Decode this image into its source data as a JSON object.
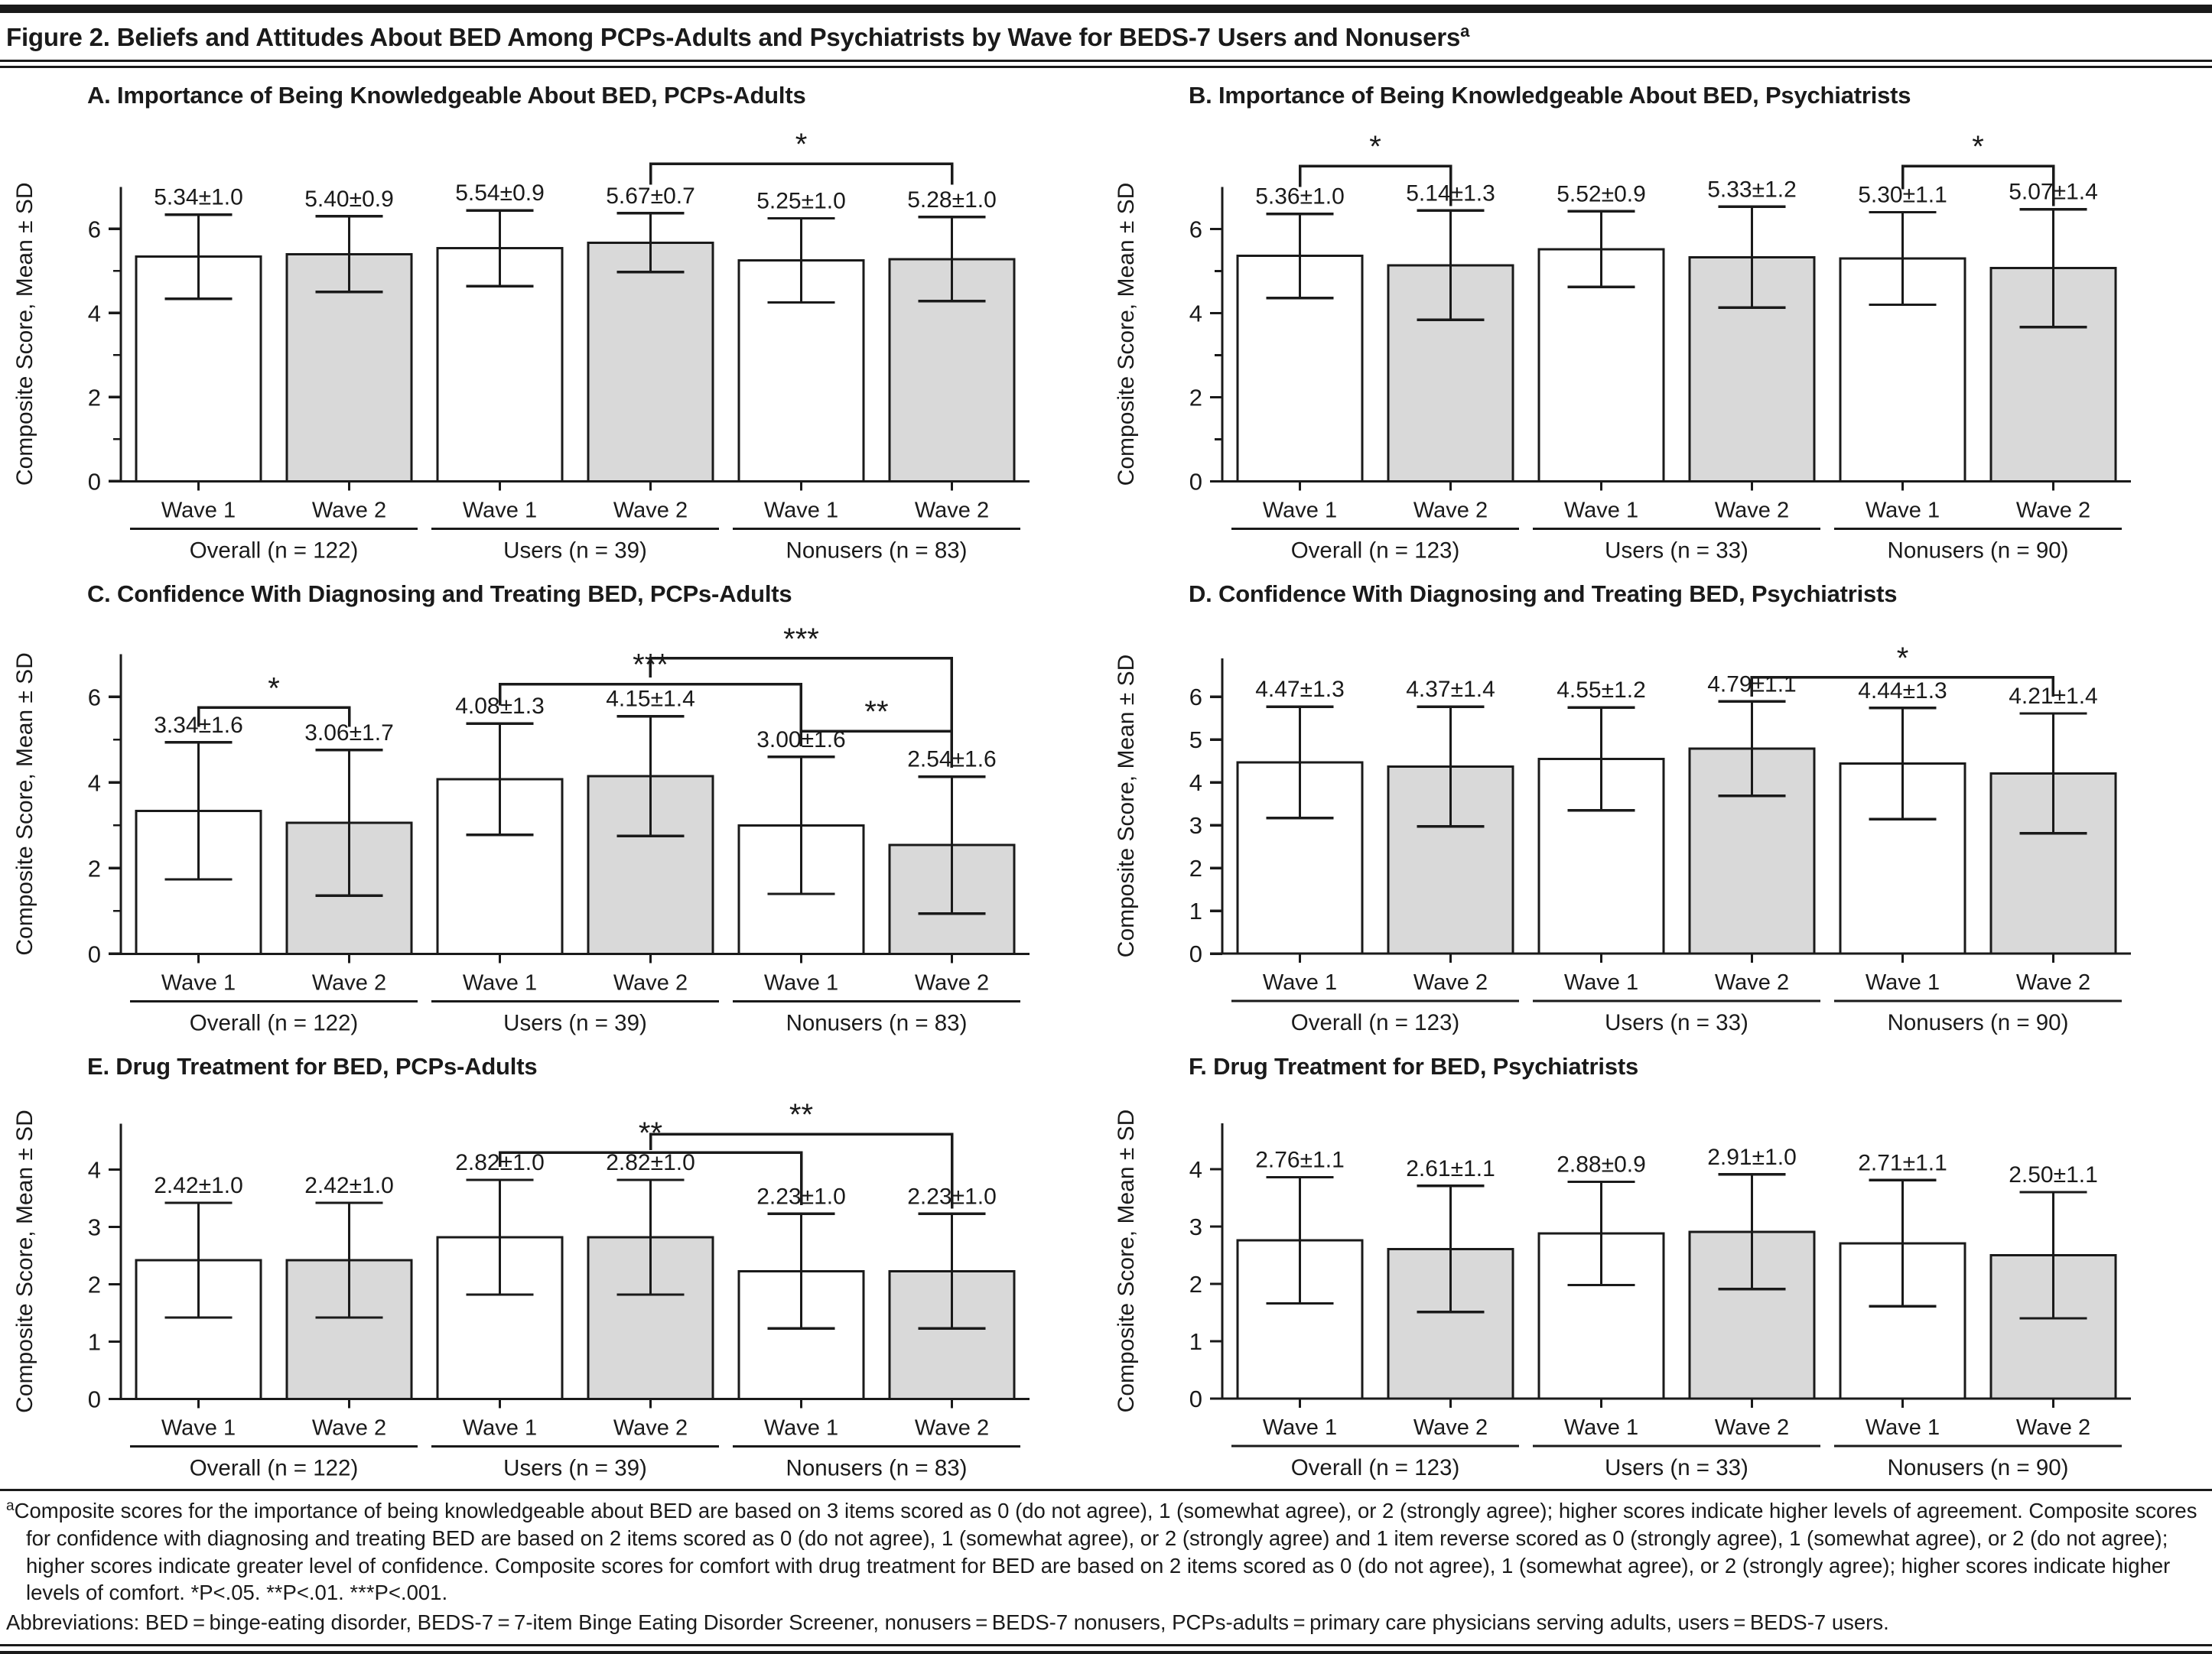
{
  "figure": {
    "title": "Figure 2. Beliefs and Attitudes About BED Among PCPs-Adults and Psychiatrists by Wave for BEDS-7 Users and Nonusers",
    "title_superscript": "a"
  },
  "colors": {
    "ink": "#1a1a1a",
    "bar_wave1_fill": "#ffffff",
    "bar_wave2_fill": "#d9d9d9"
  },
  "chart_data": [
    {
      "panel": "A",
      "type": "bar",
      "title": "A. Importance of Being Knowledgeable About BED, PCPs-Adults",
      "ylabel": "Composite Score, Mean ± SD",
      "ylim": [
        0,
        7
      ],
      "yticks": [
        0,
        2,
        4,
        6
      ],
      "yminor": [
        1,
        3,
        5
      ],
      "grid": false,
      "groups": [
        {
          "label": "Overall (n = 122)",
          "bars": [
            {
              "wave": "Wave 1",
              "mean": 5.34,
              "sd": 1.0,
              "label": "5.34±1.0"
            },
            {
              "wave": "Wave 2",
              "mean": 5.4,
              "sd": 0.9,
              "label": "5.40±0.9"
            }
          ]
        },
        {
          "label": "Users (n = 39)",
          "bars": [
            {
              "wave": "Wave 1",
              "mean": 5.54,
              "sd": 0.9,
              "label": "5.54±0.9"
            },
            {
              "wave": "Wave 2",
              "mean": 5.67,
              "sd": 0.7,
              "label": "5.67±0.7"
            }
          ]
        },
        {
          "label": "Nonusers (n = 83)",
          "bars": [
            {
              "wave": "Wave 1",
              "mean": 5.25,
              "sd": 1.0,
              "label": "5.25±1.0"
            },
            {
              "wave": "Wave 2",
              "mean": 5.28,
              "sd": 1.0,
              "label": "5.28±1.0"
            }
          ]
        }
      ],
      "brackets": [
        {
          "from": 3,
          "to": 5,
          "label": "*",
          "y": 7.55,
          "drop_from": 0.5,
          "drop_to": 0.5
        }
      ]
    },
    {
      "panel": "B",
      "type": "bar",
      "title": "B. Importance of Being Knowledgeable About BED, Psychiatrists",
      "ylabel": "Composite Score, Mean ± SD",
      "ylim": [
        0,
        7
      ],
      "yticks": [
        0,
        2,
        4,
        6
      ],
      "yminor": [
        1,
        3,
        5
      ],
      "grid": false,
      "groups": [
        {
          "label": "Overall (n = 123)",
          "bars": [
            {
              "wave": "Wave 1",
              "mean": 5.36,
              "sd": 1.0,
              "label": "5.36±1.0"
            },
            {
              "wave": "Wave 2",
              "mean": 5.14,
              "sd": 1.3,
              "label": "5.14±1.3"
            }
          ]
        },
        {
          "label": "Users  (n = 33)",
          "bars": [
            {
              "wave": "Wave 1",
              "mean": 5.52,
              "sd": 0.9,
              "label": "5.52±0.9"
            },
            {
              "wave": "Wave 2",
              "mean": 5.33,
              "sd": 1.2,
              "label": "5.33±1.2"
            }
          ]
        },
        {
          "label": "Nonusers  (n = 90)",
          "bars": [
            {
              "wave": "Wave 1",
              "mean": 5.3,
              "sd": 1.1,
              "label": "5.30±1.1"
            },
            {
              "wave": "Wave 2",
              "mean": 5.07,
              "sd": 1.4,
              "label": "5.07±1.4"
            }
          ]
        }
      ],
      "brackets": [
        {
          "from": 0,
          "to": 1,
          "label": "*",
          "y": 7.5,
          "drop_from": 0.5,
          "drop_to": 0.95
        },
        {
          "from": 4,
          "to": 5,
          "label": "*",
          "y": 7.5,
          "drop_from": 0.55,
          "drop_to": 0.95
        }
      ]
    },
    {
      "panel": "C",
      "type": "bar",
      "title": "C. Confidence With Diagnosing and Treating BED, PCPs-Adults",
      "ylabel": "Composite Score, Mean ± SD",
      "ylim": [
        0,
        7
      ],
      "yticks": [
        0,
        2,
        4,
        6
      ],
      "yminor": [
        1,
        3,
        5
      ],
      "grid": false,
      "groups": [
        {
          "label": "Overall (n = 122)",
          "bars": [
            {
              "wave": "Wave 1",
              "mean": 3.34,
              "sd": 1.6,
              "label": "3.34±1.6"
            },
            {
              "wave": "Wave 2",
              "mean": 3.06,
              "sd": 1.7,
              "label": "3.06±1.7"
            }
          ]
        },
        {
          "label": "Users (n = 39)",
          "bars": [
            {
              "wave": "Wave 1",
              "mean": 4.08,
              "sd": 1.3,
              "label": "4.08±1.3"
            },
            {
              "wave": "Wave 2",
              "mean": 4.15,
              "sd": 1.4,
              "label": "4.15±1.4"
            }
          ]
        },
        {
          "label": "Nonusers (n = 83)",
          "bars": [
            {
              "wave": "Wave 1",
              "mean": 3.0,
              "sd": 1.6,
              "label": "3.00±1.6"
            },
            {
              "wave": "Wave 2",
              "mean": 2.54,
              "sd": 1.6,
              "label": "2.54±1.6"
            }
          ]
        }
      ],
      "brackets": [
        {
          "from": 0,
          "to": 1,
          "label": "*",
          "y": 5.75,
          "drop_from": 0.45,
          "drop_to": 0.45
        },
        {
          "from": 2,
          "to": 4,
          "label": "***",
          "y": 6.3,
          "drop_from": 0.5,
          "drop_to": 1.25
        },
        {
          "from": 3,
          "to": 5,
          "label": "***",
          "y": 6.9,
          "drop_from": 0.45,
          "drop_to": 2.55
        },
        {
          "from": 4,
          "to": 5,
          "label": "**",
          "y": 5.2,
          "drop_from": 0.35,
          "drop_to": 0.85
        }
      ]
    },
    {
      "panel": "D",
      "type": "bar",
      "title": "D. Confidence With Diagnosing and Treating BED, Psychiatrists",
      "ylabel": "Composite Score, Mean ± SD",
      "ylim": [
        0,
        6.9
      ],
      "yticks": [
        0,
        1,
        2,
        3,
        4,
        5,
        6
      ],
      "yminor": [],
      "grid": false,
      "groups": [
        {
          "label": "Overall (n = 123)",
          "bars": [
            {
              "wave": "Wave 1",
              "mean": 4.47,
              "sd": 1.3,
              "label": "4.47±1.3"
            },
            {
              "wave": "Wave 2",
              "mean": 4.37,
              "sd": 1.4,
              "label": "4.37±1.4"
            }
          ]
        },
        {
          "label": "Users (n = 33)",
          "bars": [
            {
              "wave": "Wave 1",
              "mean": 4.55,
              "sd": 1.2,
              "label": "4.55±1.2"
            },
            {
              "wave": "Wave 2",
              "mean": 4.79,
              "sd": 1.1,
              "label": "4.79±1.1"
            }
          ]
        },
        {
          "label": "Nonusers (n = 90)",
          "bars": [
            {
              "wave": "Wave 1",
              "mean": 4.44,
              "sd": 1.3,
              "label": "4.44±1.3"
            },
            {
              "wave": "Wave 2",
              "mean": 4.21,
              "sd": 1.4,
              "label": "4.21±1.4"
            }
          ]
        }
      ],
      "brackets": [
        {
          "from": 3,
          "to": 5,
          "label": "*",
          "y": 6.45,
          "drop_from": 0.45,
          "drop_to": 0.45
        }
      ]
    },
    {
      "panel": "E",
      "type": "bar",
      "title": "E. Drug Treatment for BED, PCPs-Adults",
      "ylabel": "Composite Score, Mean ± SD",
      "ylim": [
        0,
        4.8
      ],
      "yticks": [
        0,
        1,
        2,
        3,
        4
      ],
      "yminor": [],
      "grid": false,
      "groups": [
        {
          "label": "Overall (n = 122)",
          "bars": [
            {
              "wave": "Wave 1",
              "mean": 2.42,
              "sd": 1.0,
              "label": "2.42±1.0"
            },
            {
              "wave": "Wave 2",
              "mean": 2.42,
              "sd": 1.0,
              "label": "2.42±1.0"
            }
          ]
        },
        {
          "label": "Users (n = 39)",
          "bars": [
            {
              "wave": "Wave 1",
              "mean": 2.82,
              "sd": 1.0,
              "label": "2.82±1.0"
            },
            {
              "wave": "Wave 2",
              "mean": 2.82,
              "sd": 1.0,
              "label": "2.82±1.0"
            }
          ]
        },
        {
          "label": "Nonusers (n = 83)",
          "bars": [
            {
              "wave": "Wave 1",
              "mean": 2.23,
              "sd": 1.0,
              "label": "2.23±1.0"
            },
            {
              "wave": "Wave 2",
              "mean": 2.23,
              "sd": 1.0,
              "label": "2.23±1.0"
            }
          ]
        }
      ],
      "brackets": [
        {
          "from": 2,
          "to": 4,
          "label": "**",
          "y": 4.3,
          "drop_from": 0.25,
          "drop_to": 0.92
        },
        {
          "from": 3,
          "to": 5,
          "label": "**",
          "y": 4.62,
          "drop_from": 0.28,
          "drop_to": 1.3
        }
      ]
    },
    {
      "panel": "F",
      "type": "bar",
      "title": "F. Drug Treatment for BED, Psychiatrists",
      "ylabel": "Composite Score, Mean ± SD",
      "ylim": [
        0,
        4.8
      ],
      "yticks": [
        0,
        1,
        2,
        3,
        4
      ],
      "yminor": [],
      "grid": false,
      "groups": [
        {
          "label": "Overall (n = 123)",
          "bars": [
            {
              "wave": "Wave 1",
              "mean": 2.76,
              "sd": 1.1,
              "label": "2.76±1.1"
            },
            {
              "wave": "Wave 2",
              "mean": 2.61,
              "sd": 1.1,
              "label": "2.61±1.1"
            }
          ]
        },
        {
          "label": "Users (n = 33)",
          "bars": [
            {
              "wave": "Wave 1",
              "mean": 2.88,
              "sd": 0.9,
              "label": "2.88±0.9"
            },
            {
              "wave": "Wave 2",
              "mean": 2.91,
              "sd": 1.0,
              "label": "2.91±1.0"
            }
          ]
        },
        {
          "label": "Nonusers (n = 90)",
          "bars": [
            {
              "wave": "Wave 1",
              "mean": 2.71,
              "sd": 1.1,
              "label": "2.71±1.1"
            },
            {
              "wave": "Wave 2",
              "mean": 2.5,
              "sd": 1.1,
              "label": "2.50±1.1"
            }
          ]
        }
      ],
      "brackets": []
    }
  ],
  "footnote": {
    "marker": "a",
    "text": "Composite scores for the importance of being knowledgeable about BED are based on 3 items scored as 0 (do not agree), 1 (somewhat agree), or 2 (strongly agree); higher scores indicate higher levels of agreement. Composite scores for confidence with diagnosing and treating BED are based on 2 items scored as 0 (do not agree), 1 (somewhat agree), or 2 (strongly agree) and 1 item reverse scored as 0 (strongly agree), 1 (somewhat agree), or 2 (do not agree); higher scores indicate greater level of confidence. Composite scores for comfort with drug treatment for BED are based on 2 items scored as 0 (do not agree), 1 (somewhat agree), or 2 (strongly agree); higher scores indicate higher levels of comfort.  *P<.05.  **P<.01.  ***P<.001.",
    "abbreviations": "Abbreviations: BED = binge-eating disorder, BEDS-7 = 7-item Binge Eating Disorder Screener, nonusers = BEDS-7 nonusers, PCPs-adults = primary care physicians serving adults, users = BEDS-7 users."
  }
}
